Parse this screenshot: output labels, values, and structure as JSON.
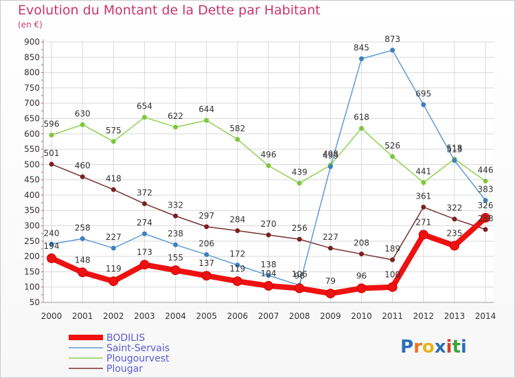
{
  "header": {
    "title": "Evolution du Montant de la Dette par Habitant",
    "subtitle": "(en €)"
  },
  "logo": {
    "text": "Proxiti",
    "letters": [
      "P",
      "r",
      "o",
      "x",
      "i",
      "t",
      "i"
    ],
    "letter_colors": [
      "#2e6fb7",
      "#e8761c",
      "#e8b51c",
      "#2e6fb7",
      "#d33c2c",
      "#3aa33a",
      "#2e6fb7"
    ]
  },
  "chart_data": {
    "type": "line",
    "categories": [
      "2000",
      "2001",
      "2002",
      "2003",
      "2004",
      "2005",
      "2006",
      "2007",
      "2008",
      "2009",
      "2010",
      "2011",
      "2012",
      "2013",
      "2014"
    ],
    "ylim": [
      50,
      900
    ],
    "yticks": [
      50,
      100,
      150,
      200,
      250,
      300,
      350,
      400,
      450,
      500,
      550,
      600,
      650,
      700,
      750,
      800,
      850,
      900
    ],
    "grid": true,
    "legend_position": "bottom-left",
    "series": [
      {
        "name": "BODILIS",
        "color": "#ee1111",
        "values": [
          194,
          148,
          119,
          173,
          155,
          137,
          119,
          104,
          96,
          79,
          96,
          100,
          271,
          235,
          326
        ]
      },
      {
        "name": "Saint-Servais",
        "color": "#5b9bd5",
        "values": [
          240,
          258,
          227,
          274,
          238,
          206,
          172,
          138,
          106,
          493,
          845,
          873,
          695,
          513,
          383
        ]
      },
      {
        "name": "Plougourvest",
        "color": "#8fd14f",
        "values": [
          596,
          630,
          575,
          654,
          622,
          644,
          582,
          496,
          439,
          498,
          618,
          526,
          441,
          518,
          446
        ]
      },
      {
        "name": "Plougar",
        "color": "#7a2e2e",
        "values": [
          501,
          460,
          418,
          372,
          332,
          297,
          284,
          270,
          256,
          227,
          208,
          189,
          361,
          322,
          288
        ]
      }
    ],
    "data_labels": {
      "BODILIS": [
        "194",
        "148",
        "119",
        "173",
        "155",
        "137",
        "119",
        "104",
        "96",
        "79",
        "96",
        "100",
        "271",
        "235",
        "326"
      ],
      "Saint-Servais": [
        "240",
        "258",
        "227",
        "274",
        "238",
        "206",
        "172",
        "138",
        "106",
        "493",
        "845",
        "873",
        "695",
        "513",
        "383"
      ],
      "Plougourvest": [
        "596",
        "630",
        "575",
        "654",
        "622",
        "644",
        "582",
        "496",
        "439",
        "498",
        "618",
        "526",
        "441",
        "518",
        "446"
      ],
      "Plougar": [
        "501",
        "460",
        "418",
        "372",
        "332",
        "297",
        "284",
        "270",
        "256",
        "227",
        "208",
        "189",
        "361",
        "322",
        "288"
      ]
    }
  }
}
